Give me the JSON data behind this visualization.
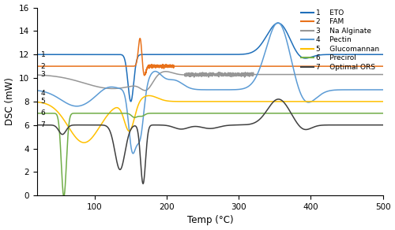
{
  "title": "",
  "xlabel": "Temp (°C)",
  "ylabel": "DSC (mW)",
  "xlim": [
    20,
    500
  ],
  "ylim": [
    0,
    16
  ],
  "xticks": [
    100,
    200,
    300,
    400,
    500
  ],
  "yticks": [
    0,
    2,
    4,
    6,
    8,
    10,
    12,
    14,
    16
  ],
  "colors": {
    "ETO": "#1f6fba",
    "FAM": "#e8711a",
    "Na_Alginate": "#969696",
    "Pectin": "#5b9bd5",
    "Glucomannan": "#ffc000",
    "Precirol": "#70ad47",
    "Optimal_ORS": "#404040"
  },
  "legend_entries": [
    {
      "num": "1",
      "label": "ETO"
    },
    {
      "num": "2",
      "label": "FAM"
    },
    {
      "num": "3",
      "label": "Na Alginate"
    },
    {
      "num": "4",
      "label": "Pectin"
    },
    {
      "num": "5",
      "label": "Glucomannan"
    },
    {
      "num": "6",
      "label": "Precirol"
    },
    {
      "num": "7",
      "label": "Optimal ORS"
    }
  ],
  "figsize": [
    5.0,
    2.92
  ],
  "dpi": 100
}
